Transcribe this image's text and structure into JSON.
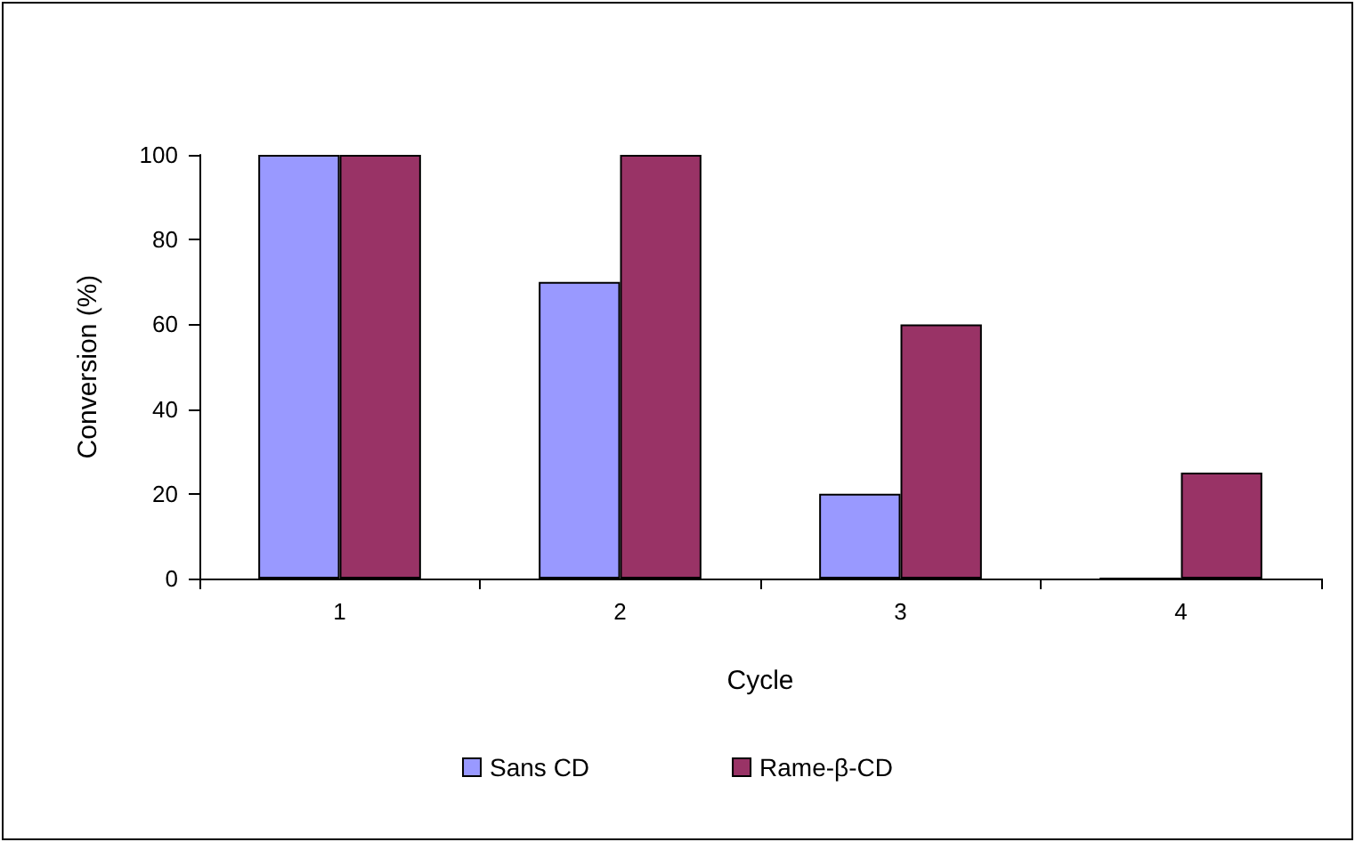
{
  "chart_data": {
    "type": "bar",
    "xlabel": "Cycle",
    "ylabel": "Conversion (%)",
    "categories": [
      "1",
      "2",
      "3",
      "4"
    ],
    "series": [
      {
        "name": "Sans CD",
        "color": "#9999ff",
        "values": [
          100,
          70,
          20,
          0
        ]
      },
      {
        "name": "Rame-β-CD",
        "color": "#993366",
        "values": [
          100,
          100,
          60,
          25
        ]
      }
    ],
    "ylim": [
      0,
      100
    ],
    "yticks": [
      0,
      20,
      40,
      60,
      80,
      100
    ],
    "grid": false,
    "legend": "bottom"
  }
}
